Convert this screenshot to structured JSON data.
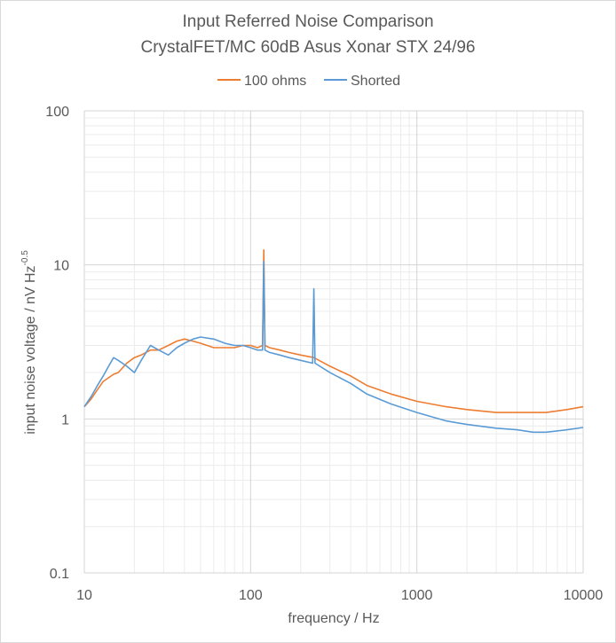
{
  "chart_data": {
    "type": "line",
    "title": "Input Referred Noise Comparison",
    "subtitle": "CrystalFET/MC 60dB Asus Xonar STX 24/96",
    "xlabel": "frequency / Hz",
    "ylabel_main": "input noise voltage / nV Hz",
    "ylabel_sup": "-0.5",
    "x_scale": "log",
    "y_scale": "log",
    "xlim": [
      10,
      10000
    ],
    "ylim": [
      0.1,
      100
    ],
    "x_ticks": [
      "10",
      "100",
      "1000",
      "10000"
    ],
    "y_ticks": [
      "0.1",
      "1",
      "10",
      "100"
    ],
    "grid": true,
    "legend_position": "top",
    "series": [
      {
        "name": "100 ohms",
        "color": "#ED7D31",
        "x": [
          10,
          11,
          12,
          13,
          14,
          15,
          16,
          18,
          20,
          22,
          25,
          28,
          32,
          36,
          40,
          45,
          50,
          60,
          70,
          80,
          90,
          100,
          110,
          118,
          120,
          122,
          130,
          150,
          170,
          200,
          240,
          300,
          400,
          500,
          700,
          1000,
          1500,
          2000,
          3000,
          4000,
          5000,
          6000,
          8000,
          10000
        ],
        "y": [
          1.2,
          1.35,
          1.55,
          1.75,
          1.85,
          1.95,
          2.0,
          2.3,
          2.5,
          2.6,
          2.8,
          2.8,
          3.0,
          3.2,
          3.3,
          3.2,
          3.1,
          2.9,
          2.9,
          2.9,
          3.0,
          3.0,
          2.9,
          3.0,
          12.5,
          3.0,
          2.9,
          2.8,
          2.7,
          2.6,
          2.5,
          2.2,
          1.9,
          1.65,
          1.45,
          1.3,
          1.2,
          1.15,
          1.1,
          1.1,
          1.1,
          1.1,
          1.15,
          1.2
        ]
      },
      {
        "name": "Shorted",
        "color": "#5B9BD5",
        "x": [
          10,
          11,
          12,
          13,
          14,
          15,
          16,
          18,
          20,
          22,
          25,
          28,
          32,
          36,
          40,
          45,
          50,
          60,
          70,
          80,
          90,
          100,
          110,
          118,
          120,
          122,
          130,
          150,
          170,
          200,
          236,
          240,
          244,
          300,
          400,
          500,
          700,
          1000,
          1500,
          2000,
          3000,
          4000,
          5000,
          6000,
          8000,
          10000
        ],
        "y": [
          1.2,
          1.4,
          1.65,
          1.9,
          2.2,
          2.5,
          2.4,
          2.2,
          2.0,
          2.4,
          3.0,
          2.8,
          2.6,
          2.9,
          3.1,
          3.3,
          3.4,
          3.3,
          3.1,
          3.0,
          3.0,
          2.9,
          2.8,
          2.8,
          10.5,
          2.8,
          2.7,
          2.6,
          2.5,
          2.4,
          2.3,
          7.0,
          2.3,
          2.0,
          1.7,
          1.45,
          1.25,
          1.1,
          0.97,
          0.92,
          0.87,
          0.85,
          0.82,
          0.82,
          0.85,
          0.88
        ]
      }
    ]
  }
}
